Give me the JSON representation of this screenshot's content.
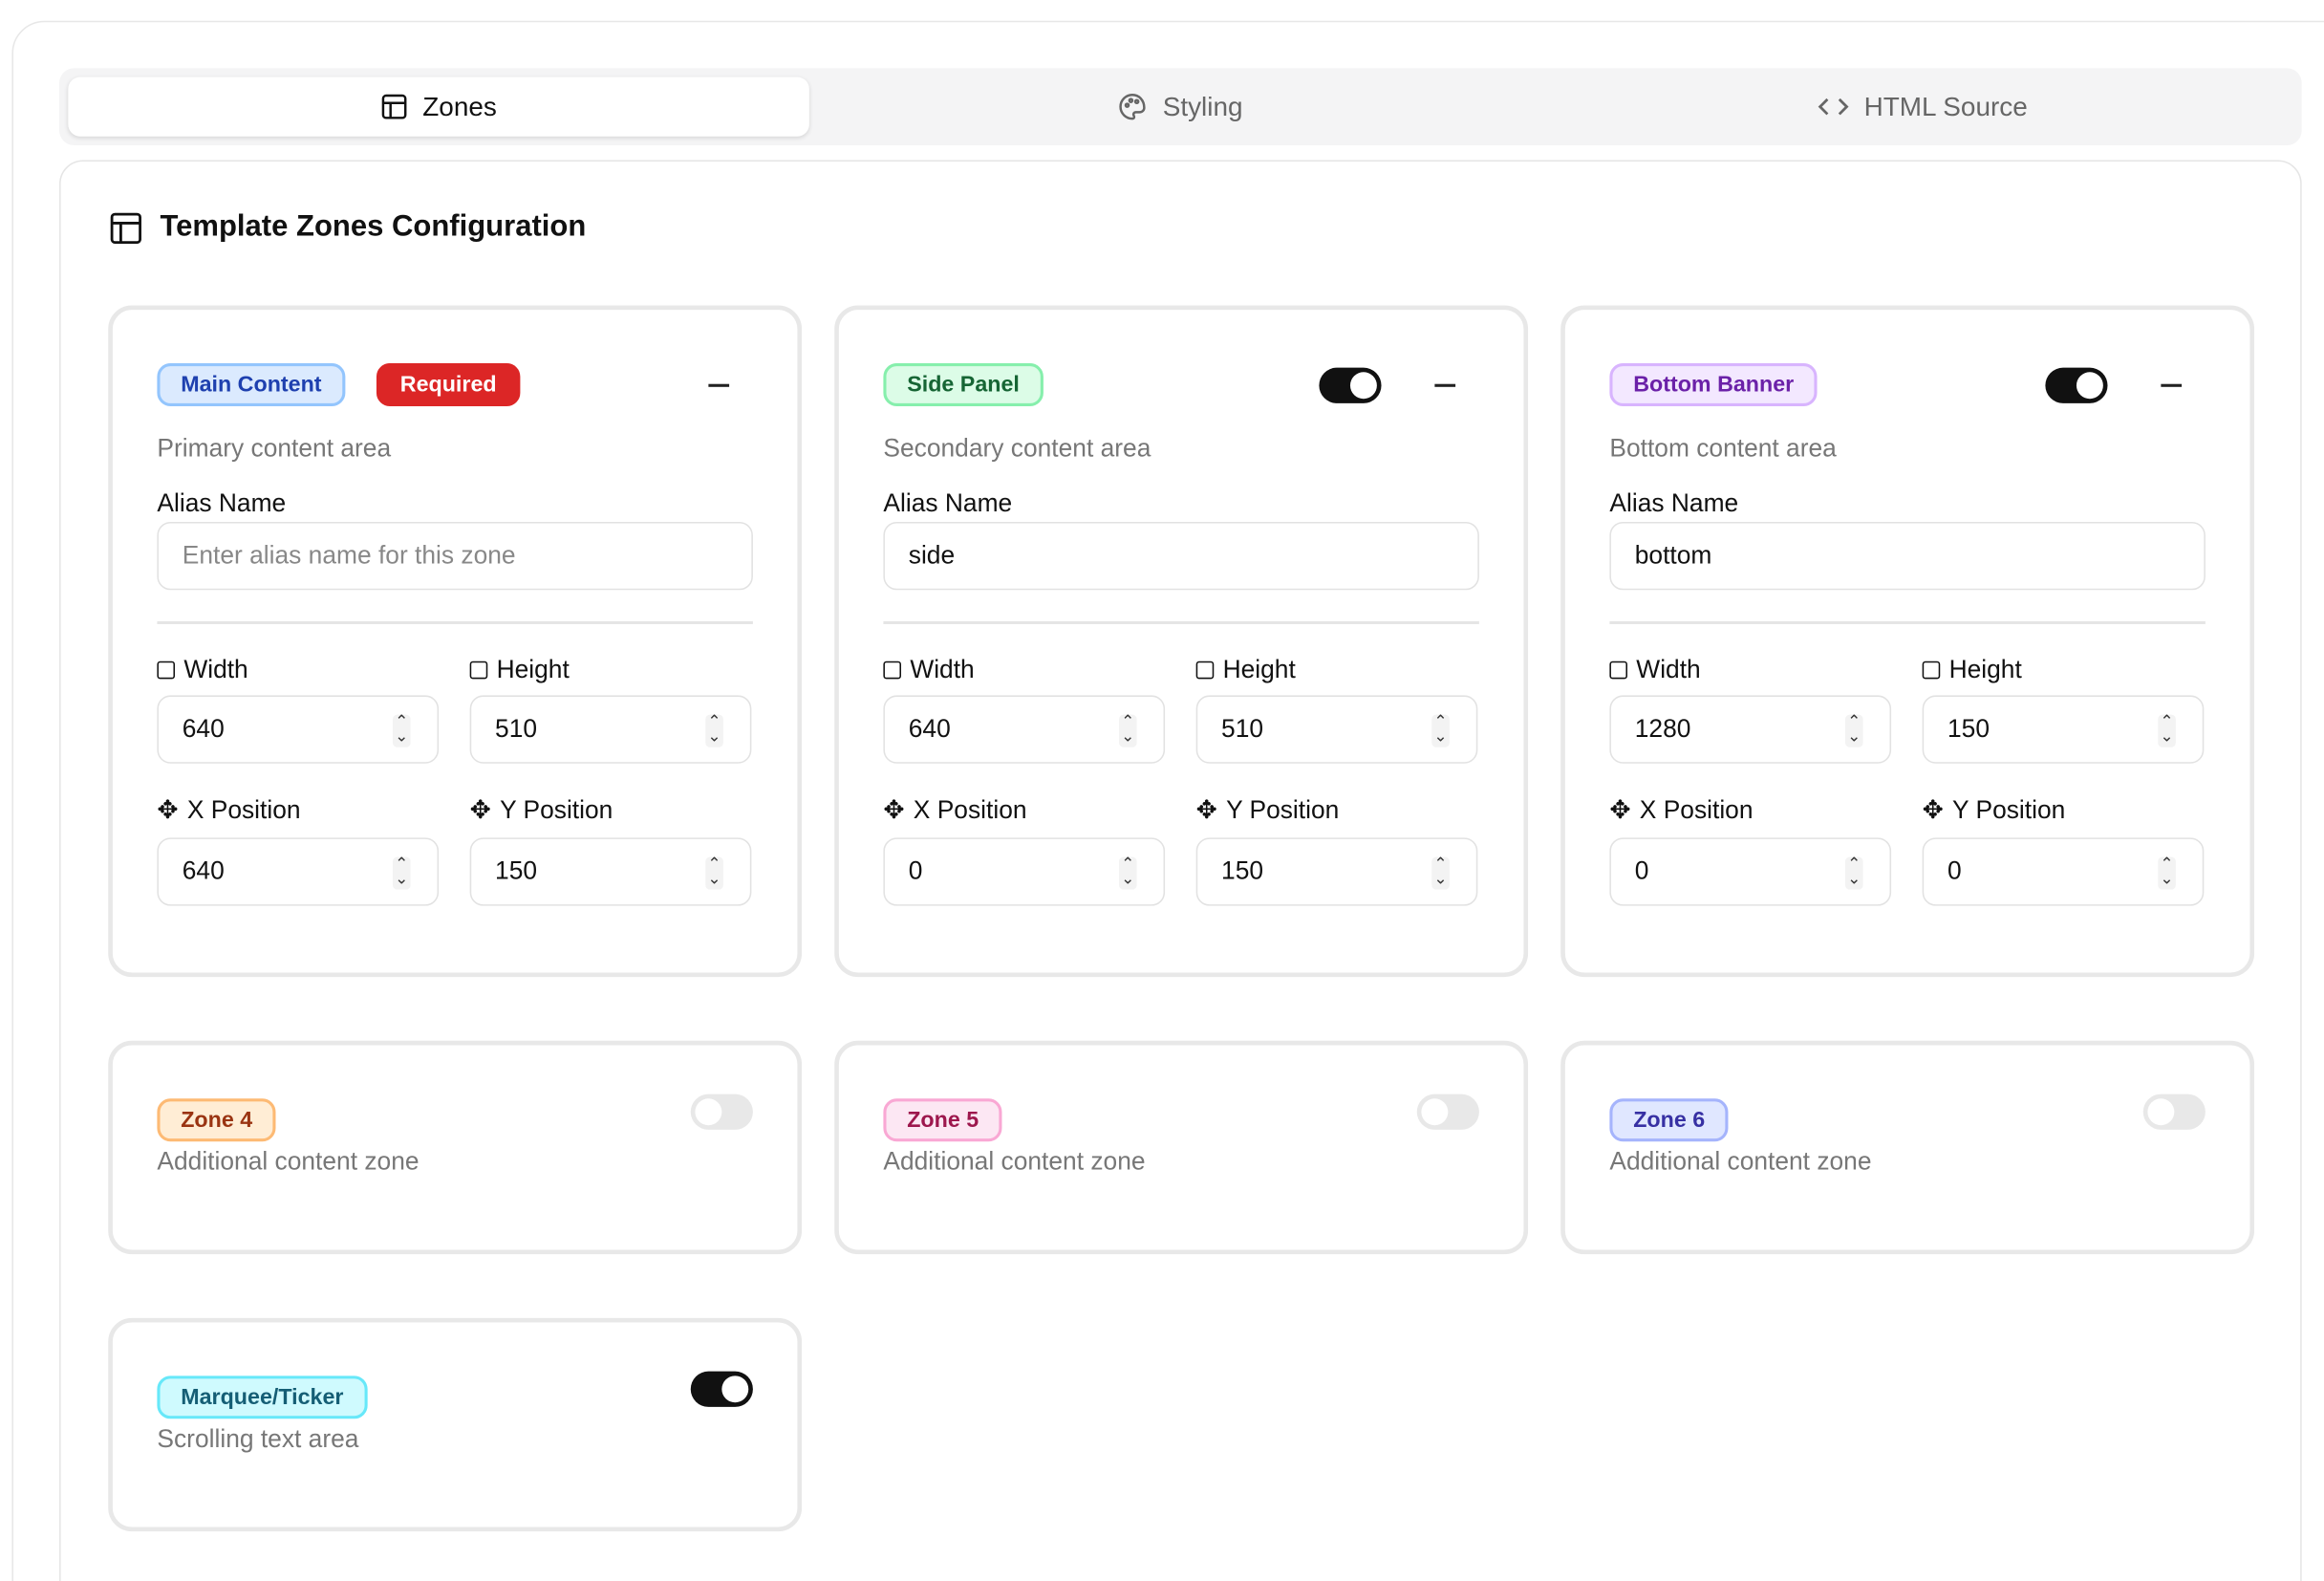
{
  "tabs": [
    {
      "label": "Zones",
      "icon": "layout-icon",
      "active": true
    },
    {
      "label": "Styling",
      "icon": "palette-icon",
      "active": false
    },
    {
      "label": "HTML Source",
      "icon": "code-icon",
      "active": false
    }
  ],
  "panel": {
    "title": "Template Zones Configuration"
  },
  "labels": {
    "alias": "Alias Name",
    "alias_placeholder": "Enter alias name for this zone",
    "width": "Width",
    "height": "Height",
    "x": "X Position",
    "y": "Y Position"
  },
  "zones": [
    {
      "name": "Main Content",
      "required_label": "Required",
      "description": "Primary content area",
      "alias": "",
      "width": "640",
      "height": "510",
      "x": "640",
      "y": "150",
      "color": "#1e40af"
    },
    {
      "name": "Side Panel",
      "enabled": true,
      "description": "Secondary content area",
      "alias": "side",
      "width": "640",
      "height": "510",
      "x": "0",
      "y": "150",
      "color": "#166534"
    },
    {
      "name": "Bottom Banner",
      "enabled": true,
      "description": "Bottom content area",
      "alias": "bottom",
      "width": "1280",
      "height": "150",
      "x": "0",
      "y": "0",
      "color": "#6b21a8"
    },
    {
      "name": "Zone 4",
      "enabled": false,
      "description": "Additional content zone",
      "color": "#9a3412"
    },
    {
      "name": "Zone 5",
      "enabled": false,
      "description": "Additional content zone",
      "color": "#9d174d"
    },
    {
      "name": "Zone 6",
      "enabled": false,
      "description": "Additional content zone",
      "color": "#3730a3"
    },
    {
      "name": "Marquee/Ticker",
      "enabled": true,
      "description": "Scrolling text area",
      "color": "#155e75"
    }
  ]
}
